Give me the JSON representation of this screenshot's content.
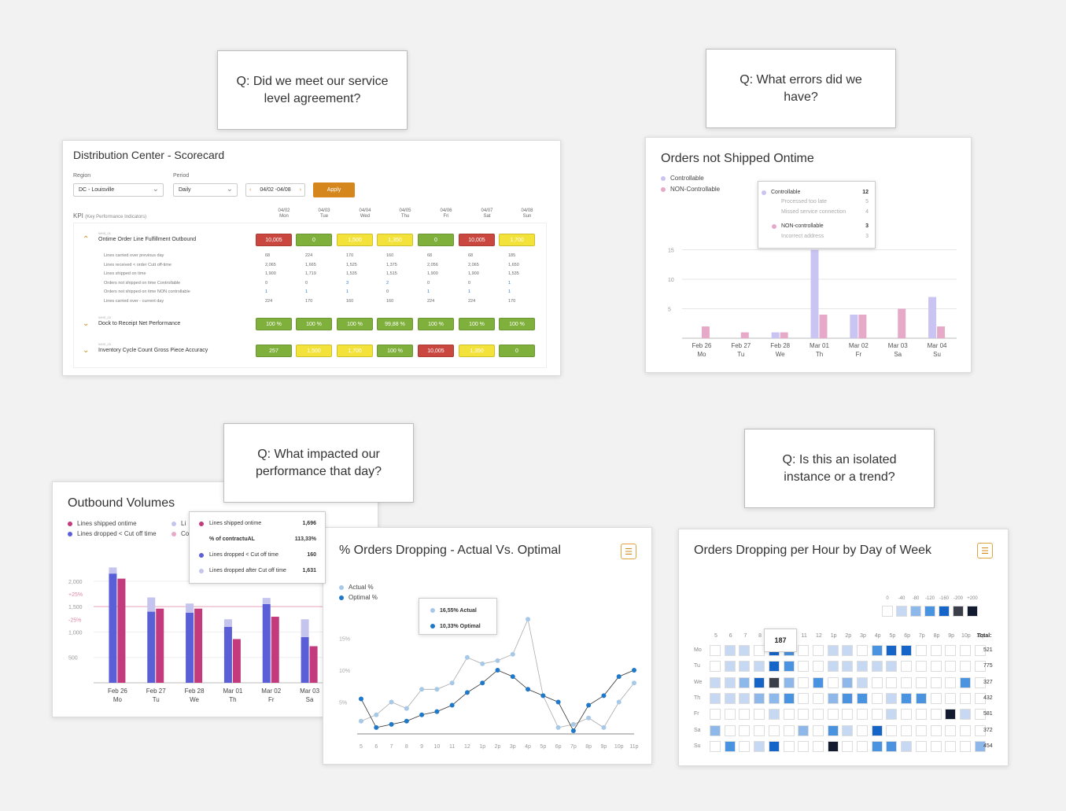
{
  "questions": {
    "q1": "Q: Did we meet our service level agreement?",
    "q2": "Q: What errors did we have?",
    "q3": "Q: What impacted our performance that day?",
    "q4": "Q: Is this an isolated instance or a trend?"
  },
  "scorecard": {
    "title": "Distribution Center - Scorecard",
    "region_label": "Region",
    "region_value": "DC - Louisville",
    "period_label": "Period",
    "period_value": "Daily",
    "date_range": "04/02 -04/08",
    "apply_label": "Apply",
    "kpi_label": "KPI",
    "kpi_sub": "(Key Performance Indicators)",
    "dates": [
      [
        "04/02",
        "Mon"
      ],
      [
        "04/03",
        "Tue"
      ],
      [
        "04/04",
        "Wed"
      ],
      [
        "04/05",
        "Thu"
      ],
      [
        "04/06",
        "Fri"
      ],
      [
        "04/07",
        "Sat"
      ],
      [
        "04/08",
        "Sun"
      ]
    ],
    "kpis": [
      {
        "code": "WHS_01",
        "name": "Ontime Order Line Fulfillment Outbound",
        "values": [
          "10,005",
          "0",
          "1,500",
          "1,350",
          "0",
          "10,005",
          "1,700"
        ],
        "colors": [
          "red",
          "green",
          "yellow",
          "yellow",
          "green",
          "red",
          "yellow"
        ],
        "sub_rows": [
          {
            "label": "Lines carried over previous day",
            "values": [
              "68",
              "224",
              "170",
              "160",
              "68",
              "68",
              "185"
            ]
          },
          {
            "label": "Lines received < order Cutt off-time",
            "values": [
              "2,065",
              "1,665",
              "1,525",
              "1,375",
              "2,056",
              "2,065",
              "1,650"
            ]
          },
          {
            "label": "Lines shipped on time",
            "values": [
              "1,900",
              "1,719",
              "1,535",
              "1,515",
              "1,900",
              "1,900",
              "1,535"
            ]
          },
          {
            "label": "Orders not shipped on time Controllable",
            "values": [
              "0",
              "0",
              "3",
              "2",
              "0",
              "0",
              "1"
            ]
          },
          {
            "label": "Orders not shipped on time NON controllable",
            "values": [
              "1",
              "1",
              "1",
              "0",
              "1",
              "1",
              "1"
            ]
          },
          {
            "label": "Lines carried over - current day",
            "values": [
              "224",
              "170",
              "160",
              "160",
              "224",
              "224",
              "170"
            ]
          }
        ]
      },
      {
        "code": "WHS_02",
        "name": "Dock to Receipt Net Performance",
        "values": [
          "100 %",
          "100 %",
          "100 %",
          "99,88 %",
          "100 %",
          "100 %",
          "100 %"
        ],
        "colors": [
          "green",
          "green",
          "green",
          "green",
          "green",
          "green",
          "green"
        ]
      },
      {
        "code": "WHS_03",
        "name": "Inventory Cycle Count Gross Piece Accuracy",
        "values": [
          "257",
          "1,500",
          "1,700",
          "100 %",
          "10,005",
          "1,350",
          "0"
        ],
        "colors": [
          "green",
          "yellow",
          "yellow",
          "green",
          "red",
          "yellow",
          "green"
        ]
      }
    ]
  },
  "orders_not_shipped": {
    "title": "Orders not Shipped Ontime",
    "legend": [
      "Controllable",
      "NON-Controllable"
    ],
    "tooltip": {
      "controllable_label": "Controllable",
      "controllable_value": "12",
      "c1_label": "Processed too late",
      "c1_value": "5",
      "c2_label": "Missed service connection",
      "c2_value": "4",
      "noncontrollable_label": "NON-controllable",
      "noncontrollable_value": "3",
      "n1_label": "Incorrect address",
      "n1_value": "3"
    },
    "chart_data": {
      "type": "bar",
      "categories": [
        "Feb 26",
        "Feb 27",
        "Feb 28",
        "Mar 01",
        "Mar 02",
        "Mar 03",
        "Mar 04"
      ],
      "day_labels": [
        "Mo",
        "Tu",
        "We",
        "Th",
        "Fr",
        "Sa",
        "Su"
      ],
      "series": [
        {
          "name": "Controllable",
          "values": [
            0,
            0,
            1,
            15,
            4,
            0,
            7
          ],
          "color": "#c9c4f1"
        },
        {
          "name": "NON-Controllable",
          "values": [
            2,
            1,
            1,
            4,
            4,
            5,
            2
          ],
          "color": "#e6aac8"
        }
      ],
      "yticks": [
        5,
        10,
        15
      ],
      "ylim": [
        0,
        16
      ]
    }
  },
  "outbound": {
    "title": "Outbound Volumes",
    "legend": [
      "Lines shipped ontime",
      "Lines dropped < Cut off time",
      "Li",
      "Co"
    ],
    "tooltip": {
      "r1_label": "Lines shipped ontime",
      "r1_value": "1,696",
      "r2_label": "% of contractuAL",
      "r2_value": "113,33%",
      "r3_label": "Lines dropped < Cut off time",
      "r3_value": "160",
      "r4_label": "Lines dropped after Cut off time",
      "r4_value": "1,631"
    },
    "chart_data": {
      "type": "bar",
      "categories": [
        "Feb 26",
        "Feb 27",
        "Feb 28",
        "Mar 01",
        "Mar 02",
        "Mar 03"
      ],
      "day_labels": [
        "Mo",
        "Tu",
        "We",
        "Th",
        "Fr",
        "Sa"
      ],
      "series": [
        {
          "name": "Lines dropped < Cut off time",
          "values": [
            2150,
            1400,
            1380,
            1100,
            1550,
            900
          ],
          "color": "#5a5fd8"
        },
        {
          "name": "Lines dropped after Cut off time",
          "values": [
            120,
            280,
            180,
            150,
            120,
            350
          ],
          "color": "#c4c4ee"
        },
        {
          "name": "Lines shipped ontime",
          "values": [
            2050,
            1460,
            1460,
            860,
            1300,
            720
          ],
          "color": "#c33a7d"
        }
      ],
      "yticks": [
        "500",
        "1,000",
        "-25%",
        "1,500",
        "+25%",
        "2,000"
      ],
      "ylim": [
        0,
        2400
      ]
    }
  },
  "dropping": {
    "title": "% Orders Dropping - Actual Vs. Optimal",
    "legend": [
      "Actual %",
      "Optimal %"
    ],
    "tooltip": {
      "actual": "16,55% Actual",
      "optimal": "10,33% Optimal"
    },
    "chart_data": {
      "type": "line",
      "x": [
        "5",
        "6",
        "7",
        "8",
        "9",
        "10",
        "11",
        "12",
        "1p",
        "2p",
        "3p",
        "4p",
        "5p",
        "6p",
        "7p",
        "8p",
        "9p",
        "10p",
        "11p"
      ],
      "series": [
        {
          "name": "Actual %",
          "values": [
            2,
            3,
            5,
            4,
            7,
            7,
            8,
            12,
            11,
            11.5,
            12.5,
            18,
            6,
            1,
            1.5,
            2.5,
            1,
            5,
            8
          ],
          "color": "#a8c8e8"
        },
        {
          "name": "Optimal %",
          "values": [
            5.5,
            1,
            1.5,
            2,
            3,
            3.5,
            4.5,
            6.5,
            8,
            10,
            9,
            7,
            6,
            5,
            0.5,
            4.5,
            6,
            9,
            10
          ],
          "color": "#1f78c8"
        }
      ],
      "yticks": [
        "5%",
        "10%",
        "15%"
      ],
      "ylim": [
        0,
        20
      ]
    }
  },
  "hourly": {
    "title": "Orders Dropping per Hour by Day of Week",
    "scale": [
      "0",
      "-40",
      "-80",
      "-120",
      "-160",
      "-200",
      "+200"
    ],
    "hours": [
      "5",
      "6",
      "7",
      "8",
      "",
      "",
      "11",
      "12",
      "1p",
      "2p",
      "3p",
      "4p",
      "5p",
      "6p",
      "7p",
      "8p",
      "9p",
      "10p",
      "11p"
    ],
    "days": [
      "Mo",
      "Tu",
      "We",
      "Th",
      "Fr",
      "Sa",
      "Su"
    ],
    "total_label": "Total:",
    "totals": [
      "521",
      "775",
      "327",
      "432",
      "581",
      "372",
      "454"
    ],
    "tooltip": "187",
    "cells": [
      [
        0,
        1,
        1,
        0,
        4,
        3,
        0,
        0,
        1,
        1,
        0,
        3,
        4,
        4,
        0,
        0,
        0,
        0,
        0
      ],
      [
        0,
        1,
        1,
        1,
        4,
        3,
        0,
        0,
        1,
        1,
        1,
        1,
        1,
        0,
        0,
        0,
        0,
        0,
        0
      ],
      [
        1,
        1,
        2,
        4,
        5,
        2,
        0,
        3,
        0,
        2,
        1,
        0,
        0,
        0,
        0,
        0,
        0,
        3,
        0
      ],
      [
        1,
        1,
        1,
        2,
        2,
        3,
        0,
        0,
        2,
        3,
        3,
        0,
        1,
        3,
        3,
        0,
        0,
        0,
        0
      ],
      [
        0,
        0,
        0,
        0,
        1,
        0,
        0,
        0,
        0,
        0,
        0,
        0,
        1,
        0,
        0,
        0,
        6,
        1,
        0
      ],
      [
        2,
        0,
        0,
        0,
        0,
        0,
        2,
        0,
        3,
        1,
        0,
        4,
        0,
        0,
        0,
        0,
        0,
        0,
        0
      ],
      [
        0,
        3,
        0,
        1,
        4,
        0,
        0,
        0,
        6,
        0,
        0,
        3,
        3,
        1,
        0,
        0,
        0,
        0,
        2
      ]
    ],
    "palette": [
      "#ffffff",
      "#c7d9f2",
      "#8fb8ea",
      "#4a93e0",
      "#1565c8",
      "#3a3f4a",
      "#111a2e"
    ]
  }
}
